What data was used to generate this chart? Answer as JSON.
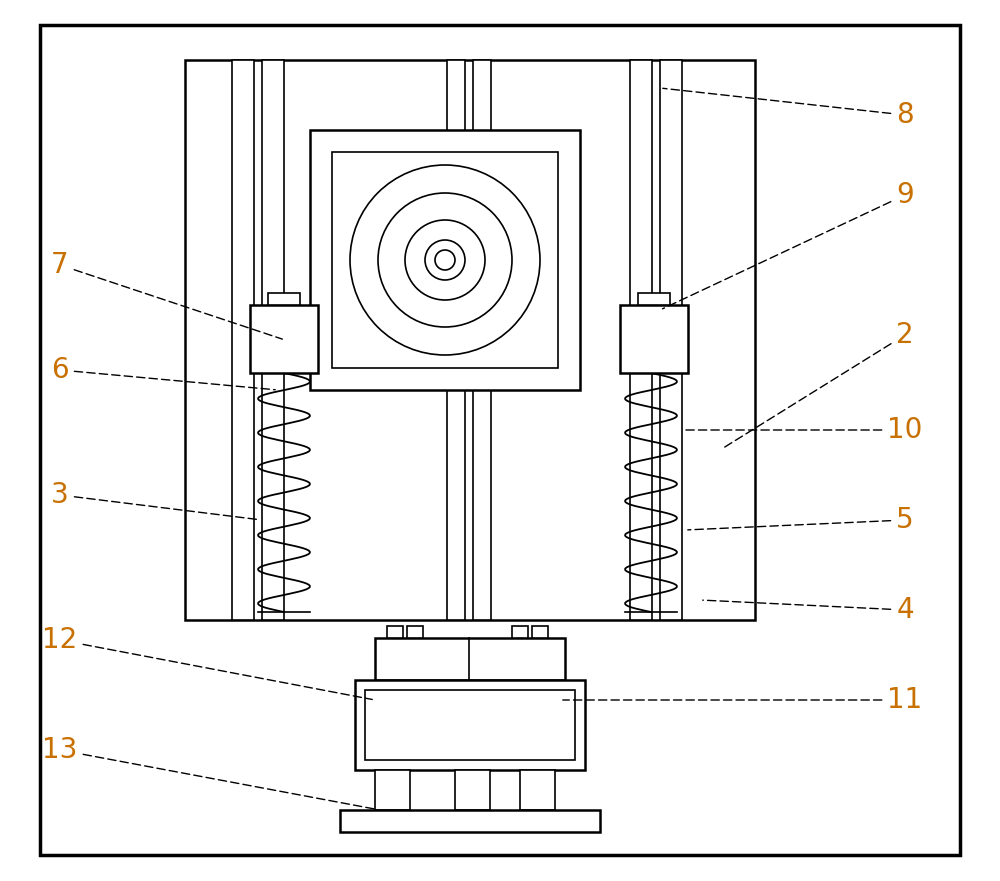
{
  "bg_color": "#ffffff",
  "line_color": "#000000",
  "label_color": "#c87000",
  "fig_width": 10.0,
  "fig_height": 8.81,
  "dpi": 100,
  "lw_border": 2.5,
  "lw_main": 1.8,
  "lw_thin": 1.2,
  "label_fontsize": 20
}
